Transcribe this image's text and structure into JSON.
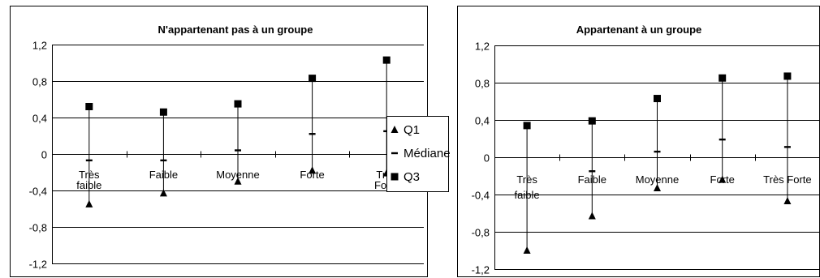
{
  "legend": {
    "items": [
      {
        "label": "Q1",
        "marker": "triangle"
      },
      {
        "label": "Médiane",
        "marker": "dash"
      },
      {
        "label": "Q3",
        "marker": "square"
      }
    ]
  },
  "chart_data": [
    {
      "type": "scatter",
      "title": "N'appartenant pas à un groupe",
      "categories": [
        [
          "Très",
          "faible"
        ],
        [
          "Faible"
        ],
        [
          "Moyenne"
        ],
        [
          "Forte"
        ],
        [
          "Très",
          "Forte"
        ]
      ],
      "ylim": [
        -1.2,
        1.2
      ],
      "yticks": [
        "1,2",
        "0,8",
        "0,4",
        "0",
        "-0,4",
        "-0,8",
        "-1,2"
      ],
      "grid": true,
      "series": [
        {
          "name": "Q1",
          "values": [
            -0.55,
            -0.43,
            -0.3,
            -0.18,
            -0.21
          ]
        },
        {
          "name": "Médiane",
          "values": [
            -0.07,
            -0.07,
            0.04,
            0.22,
            0.25
          ]
        },
        {
          "name": "Q3",
          "values": [
            0.52,
            0.46,
            0.55,
            0.83,
            1.03
          ]
        }
      ]
    },
    {
      "type": "scatter",
      "title": "Appartenant à un groupe",
      "categories": [
        [
          "Très",
          "faible"
        ],
        [
          "Faible"
        ],
        [
          "Moyenne"
        ],
        [
          "Forte"
        ],
        [
          "Très Forte"
        ]
      ],
      "ylim": [
        -1.2,
        1.2
      ],
      "yticks": [
        "1,2",
        "0,8",
        "0,4",
        "0",
        "-0,4",
        "-0,8",
        "-1,2"
      ],
      "grid": true,
      "series": [
        {
          "name": "Q1",
          "values": [
            -1.0,
            -0.63,
            -0.33,
            -0.24,
            -0.47
          ]
        },
        {
          "name": "Médiane",
          "values": [
            null,
            -0.15,
            0.06,
            0.19,
            0.11
          ]
        },
        {
          "name": "Q3",
          "values": [
            0.34,
            0.39,
            0.63,
            0.85,
            0.87
          ]
        }
      ]
    }
  ]
}
